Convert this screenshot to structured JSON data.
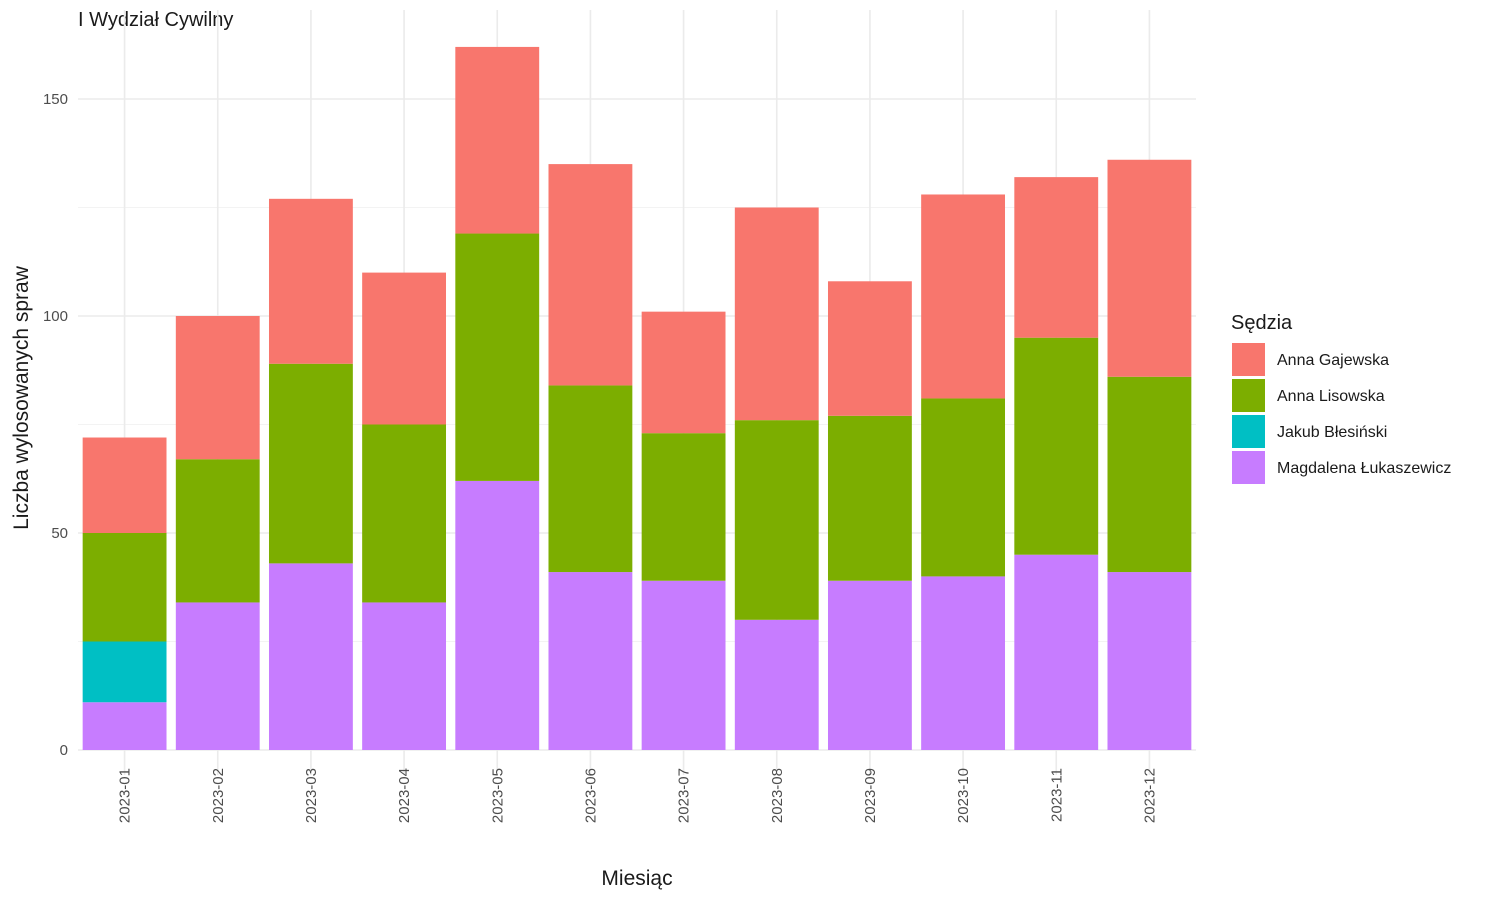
{
  "chart_data": {
    "type": "bar",
    "stacked": true,
    "title": "I Wydział Cywilny",
    "xlabel": "Miesiąc",
    "ylabel": "Liczba wylosowanych spraw",
    "ylim": [
      0,
      162
    ],
    "yticks": [
      0,
      50,
      100,
      150
    ],
    "grid": true,
    "legend_position": "right",
    "legend_title": "Sędzia",
    "categories": [
      "2023-01",
      "2023-02",
      "2023-03",
      "2023-04",
      "2023-05",
      "2023-06",
      "2023-07",
      "2023-08",
      "2023-09",
      "2023-10",
      "2023-11",
      "2023-12"
    ],
    "series": [
      {
        "name": "Anna Gajewska",
        "color": "#F8766D",
        "values": [
          22,
          33,
          38,
          35,
          43,
          51,
          28,
          49,
          31,
          47,
          37,
          50
        ]
      },
      {
        "name": "Anna Lisowska",
        "color": "#7CAE00",
        "values": [
          25,
          33,
          46,
          41,
          57,
          43,
          34,
          46,
          38,
          41,
          50,
          45
        ]
      },
      {
        "name": "Jakub Błesiński",
        "color": "#00BFC4",
        "values": [
          14,
          0,
          0,
          0,
          0,
          0,
          0,
          0,
          0,
          0,
          0,
          0
        ]
      },
      {
        "name": "Magdalena Łukaszewicz",
        "color": "#C77CFF",
        "values": [
          11,
          34,
          43,
          34,
          62,
          41,
          39,
          30,
          39,
          40,
          45,
          41
        ]
      }
    ]
  }
}
